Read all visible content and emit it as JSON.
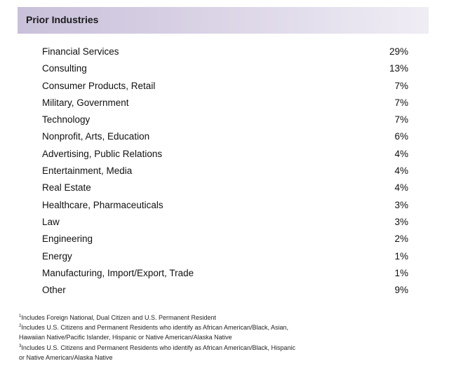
{
  "section": {
    "title": "Prior Industries"
  },
  "industries": [
    {
      "label": "Financial Services",
      "value": "29%"
    },
    {
      "label": "Consulting",
      "value": "13%"
    },
    {
      "label": "Consumer Products, Retail",
      "value": "7%"
    },
    {
      "label": "Military, Government",
      "value": "7%"
    },
    {
      "label": "Technology",
      "value": "7%"
    },
    {
      "label": "Nonprofit, Arts, Education",
      "value": "6%"
    },
    {
      "label": "Advertising, Public Relations",
      "value": "4%"
    },
    {
      "label": "Entertainment, Media",
      "value": "4%"
    },
    {
      "label": "Real Estate",
      "value": "4%"
    },
    {
      "label": "Healthcare, Pharmaceuticals",
      "value": "3%"
    },
    {
      "label": "Law",
      "value": "3%"
    },
    {
      "label": "Engineering",
      "value": "2%"
    },
    {
      "label": "Energy",
      "value": "1%"
    },
    {
      "label": "Manufacturing, Import/Export, Trade",
      "value": "1%"
    },
    {
      "label": "Other",
      "value": "9%"
    }
  ],
  "footnotes": [
    {
      "marker": "1",
      "lines": [
        "Includes Foreign National, Dual Citizen and U.S. Permanent Resident"
      ]
    },
    {
      "marker": "2",
      "lines": [
        "Includes U.S. Citizens and Permanent Residents who identify as African American/Black, Asian,",
        "Hawaiian Native/Pacific Islander, Hispanic or Native American/Alaska Native"
      ]
    },
    {
      "marker": "3",
      "lines": [
        "Includes U.S. Citizens and Permanent Residents who identify as African American/Black, Hispanic",
        "or Native American/Alaska Native"
      ]
    }
  ],
  "colors": {
    "header_start": "#c9c0da",
    "header_end": "#f0edf5",
    "text": "#111111"
  }
}
